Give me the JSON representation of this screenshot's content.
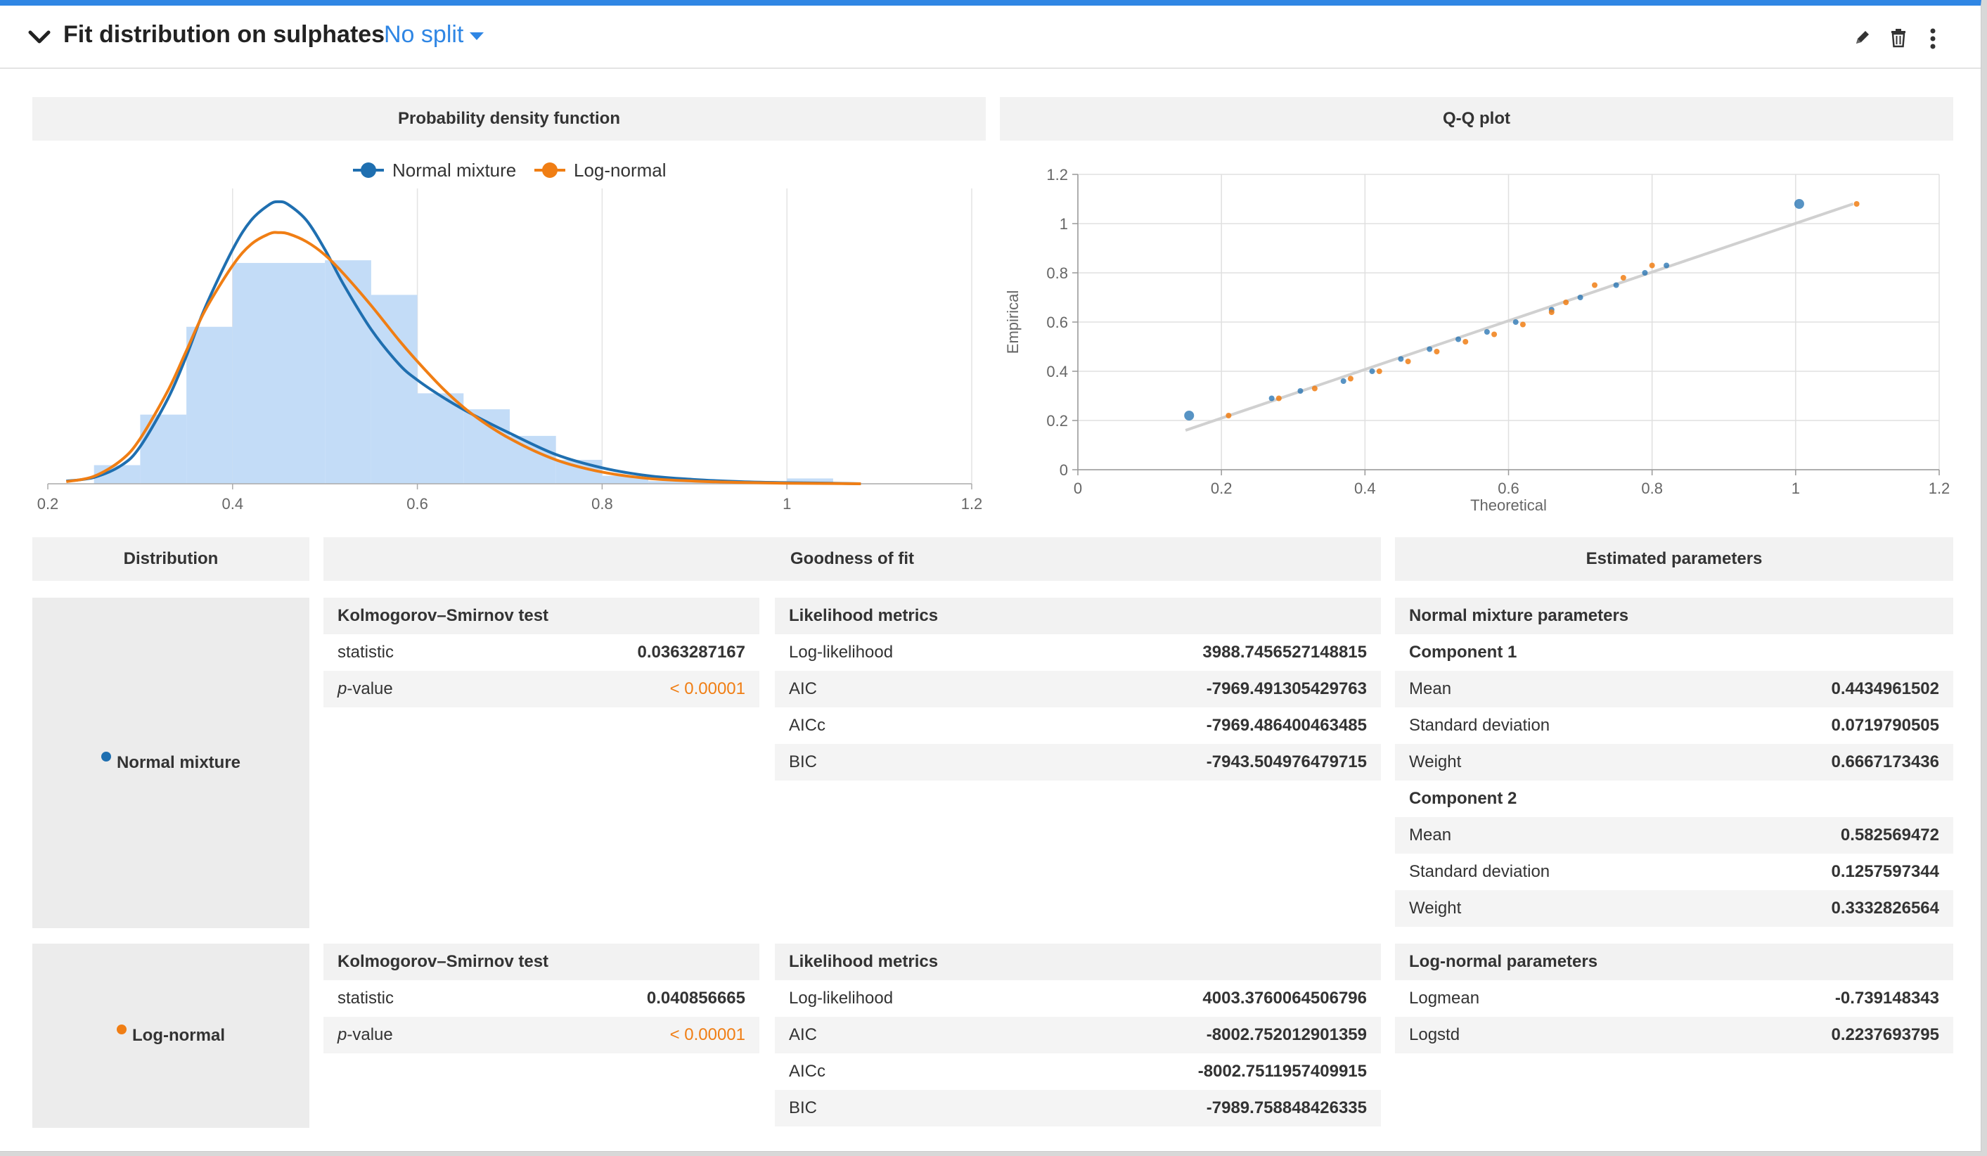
{
  "header": {
    "title": "Fit distribution on sulphates",
    "split_label": "No split",
    "icons": [
      "pencil-icon",
      "trash-icon",
      "more-vertical-icon"
    ]
  },
  "colors": {
    "accent": "#2f86e4",
    "normal_mixture": "#1f6fb0",
    "log_normal": "#f07e14",
    "histogram": "#c3dcf7"
  },
  "pdf_panel": {
    "title": "Probability density function",
    "legend": [
      "Normal mixture",
      "Log-normal"
    ]
  },
  "qq_panel": {
    "title": "Q-Q plot",
    "xlabel": "Theoretical",
    "ylabel": "Empirical"
  },
  "chart_data": [
    {
      "type": "area",
      "title": "Probability density function",
      "x_ticks": [
        "0.2",
        "0.4",
        "0.6",
        "0.8",
        "1",
        "1.2"
      ],
      "xlim": [
        0.2,
        1.2
      ],
      "histogram": {
        "bin_edges": [
          0.25,
          0.3,
          0.35,
          0.4,
          0.45,
          0.5,
          0.55,
          0.6,
          0.65,
          0.7,
          0.75,
          0.8,
          0.85,
          0.9,
          0.95,
          1.0,
          1.05
        ],
        "heights": [
          0.35,
          1.3,
          2.95,
          4.15,
          4.15,
          4.2,
          3.55,
          1.7,
          1.4,
          0.9,
          0.45,
          0.15,
          0.05,
          0.05,
          0.05,
          0.1
        ]
      },
      "series": [
        {
          "name": "Normal mixture",
          "x": [
            0.22,
            0.25,
            0.28,
            0.3,
            0.33,
            0.35,
            0.37,
            0.4,
            0.42,
            0.44,
            0.45,
            0.46,
            0.48,
            0.5,
            0.52,
            0.55,
            0.58,
            0.6,
            0.63,
            0.66,
            0.7,
            0.75,
            0.8,
            0.85,
            0.9,
            0.95,
            1.0,
            1.05,
            1.08
          ],
          "y": [
            0.05,
            0.12,
            0.35,
            0.7,
            1.6,
            2.4,
            3.3,
            4.4,
            4.95,
            5.25,
            5.3,
            5.25,
            4.95,
            4.4,
            3.75,
            2.9,
            2.25,
            1.95,
            1.6,
            1.3,
            0.95,
            0.55,
            0.3,
            0.15,
            0.08,
            0.04,
            0.02,
            0.01,
            0.0
          ]
        },
        {
          "name": "Log-normal",
          "x": [
            0.22,
            0.25,
            0.28,
            0.3,
            0.33,
            0.35,
            0.37,
            0.4,
            0.42,
            0.44,
            0.45,
            0.46,
            0.48,
            0.5,
            0.52,
            0.55,
            0.58,
            0.6,
            0.63,
            0.66,
            0.7,
            0.75,
            0.8,
            0.85,
            0.9,
            0.95,
            1.0,
            1.05,
            1.08
          ],
          "y": [
            0.04,
            0.14,
            0.45,
            0.85,
            1.75,
            2.5,
            3.25,
            4.1,
            4.5,
            4.7,
            4.72,
            4.7,
            4.55,
            4.3,
            3.95,
            3.35,
            2.7,
            2.3,
            1.75,
            1.3,
            0.85,
            0.45,
            0.22,
            0.1,
            0.05,
            0.025,
            0.01,
            0.005,
            0.0
          ]
        }
      ]
    },
    {
      "type": "scatter",
      "title": "Q-Q plot",
      "xlabel": "Theoretical",
      "ylabel": "Empirical",
      "xlim": [
        0,
        1.2
      ],
      "ylim": [
        0,
        1.2
      ],
      "x_ticks": [
        "0",
        "0.2",
        "0.4",
        "0.6",
        "0.8",
        "1",
        "1.2"
      ],
      "y_ticks": [
        "0",
        "0.2",
        "0.4",
        "0.6",
        "0.8",
        "1",
        "1.2"
      ],
      "reference_line": {
        "x": [
          0.15,
          1.08
        ],
        "y": [
          0.16,
          1.08
        ]
      },
      "series": [
        {
          "name": "Normal mixture",
          "x": [
            0.155,
            0.27,
            0.31,
            0.37,
            0.41,
            0.45,
            0.49,
            0.53,
            0.57,
            0.61,
            0.66,
            0.7,
            0.75,
            0.79,
            0.82,
            1.005
          ],
          "y": [
            0.22,
            0.29,
            0.32,
            0.36,
            0.4,
            0.45,
            0.49,
            0.53,
            0.56,
            0.6,
            0.65,
            0.7,
            0.75,
            0.8,
            0.83,
            1.08
          ]
        },
        {
          "name": "Log-normal",
          "x": [
            0.21,
            0.28,
            0.33,
            0.38,
            0.42,
            0.46,
            0.5,
            0.54,
            0.58,
            0.62,
            0.66,
            0.68,
            0.72,
            0.76,
            0.8,
            1.085
          ],
          "y": [
            0.22,
            0.29,
            0.33,
            0.37,
            0.4,
            0.44,
            0.48,
            0.52,
            0.55,
            0.59,
            0.64,
            0.68,
            0.75,
            0.78,
            0.83,
            1.08
          ]
        }
      ]
    }
  ],
  "table": {
    "headers": {
      "distribution": "Distribution",
      "goodness": "Goodness of fit",
      "params": "Estimated parameters"
    },
    "normal_mixture": {
      "name": "Normal mixture",
      "ks": {
        "title": "Kolmogorov–Smirnov test",
        "statistic_label": "statistic",
        "statistic": "0.0363287167",
        "pvalue_label": "p",
        "pvalue_suffix": "-value",
        "pvalue": "< 0.00001"
      },
      "likelihood": {
        "title": "Likelihood metrics",
        "rows": [
          {
            "label": "Log-likelihood",
            "value": "3988.7456527148815"
          },
          {
            "label": "AIC",
            "value": "-7969.491305429763"
          },
          {
            "label": "AICc",
            "value": "-7969.486400463485"
          },
          {
            "label": "BIC",
            "value": "-7943.504976479715"
          }
        ]
      },
      "params": {
        "title": "Normal mixture parameters",
        "c1": "Component 1",
        "c1_rows": [
          {
            "label": "Mean",
            "value": "0.4434961502"
          },
          {
            "label": "Standard deviation",
            "value": "0.0719790505"
          },
          {
            "label": "Weight",
            "value": "0.6667173436"
          }
        ],
        "c2": "Component 2",
        "c2_rows": [
          {
            "label": "Mean",
            "value": "0.582569472"
          },
          {
            "label": "Standard deviation",
            "value": "0.1257597344"
          },
          {
            "label": "Weight",
            "value": "0.3332826564"
          }
        ]
      }
    },
    "log_normal": {
      "name": "Log-normal",
      "ks": {
        "title": "Kolmogorov–Smirnov test",
        "statistic_label": "statistic",
        "statistic": "0.040856665",
        "pvalue_label": "p",
        "pvalue_suffix": "-value",
        "pvalue": "< 0.00001"
      },
      "likelihood": {
        "title": "Likelihood metrics",
        "rows": [
          {
            "label": "Log-likelihood",
            "value": "4003.3760064506796"
          },
          {
            "label": "AIC",
            "value": "-8002.752012901359"
          },
          {
            "label": "AICc",
            "value": "-8002.7511957409915"
          },
          {
            "label": "BIC",
            "value": "-7989.758848426335"
          }
        ]
      },
      "params": {
        "title": "Log-normal parameters",
        "rows": [
          {
            "label": "Logmean",
            "value": "-0.739148343"
          },
          {
            "label": "Logstd",
            "value": "0.2237693795"
          }
        ]
      }
    }
  }
}
